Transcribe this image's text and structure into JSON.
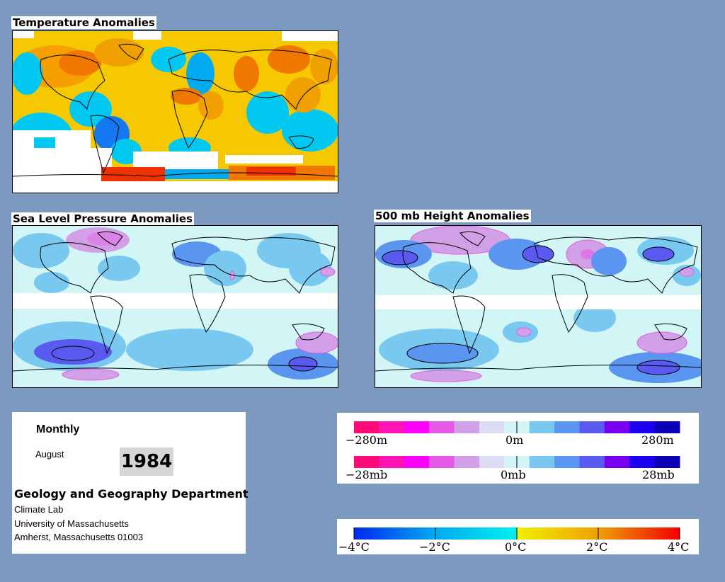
{
  "temperature_map": {
    "title": "Temperature Anomalies"
  },
  "slp_map": {
    "title": "Sea Level Pressure Anomalies"
  },
  "height_map": {
    "title": "500 mb Height Anomalies"
  },
  "info": {
    "period": "Monthly",
    "month": "August",
    "year": "1984",
    "department": "Geology and Geography Department",
    "address_lines": [
      "Climate Lab",
      "University of Massachusetts",
      "Amherst, Massachusetts 01003"
    ]
  },
  "height_legend": {
    "labels": [
      "−280m",
      "0m",
      "280m"
    ],
    "colors": [
      "#ff0a78",
      "#ff14b4",
      "#ff00ff",
      "#e65ae6",
      "#d2a0e6",
      "#dcdcf5",
      "#d2f5f5",
      "#78c8f0",
      "#5a96f0",
      "#5a5af0",
      "#7800f0",
      "#1e00f0",
      "#0a00b4"
    ]
  },
  "pressure_legend": {
    "labels": [
      "−28mb",
      "0mb",
      "28mb"
    ]
  },
  "temp_legend": {
    "labels": [
      "−4°C",
      "−2°C",
      "0°C",
      "2°C",
      "4°C"
    ],
    "colors": [
      "#0028f0",
      "#00aaf0",
      "#00f0f0",
      "#f0f000",
      "#f0a000",
      "#f00000"
    ]
  }
}
